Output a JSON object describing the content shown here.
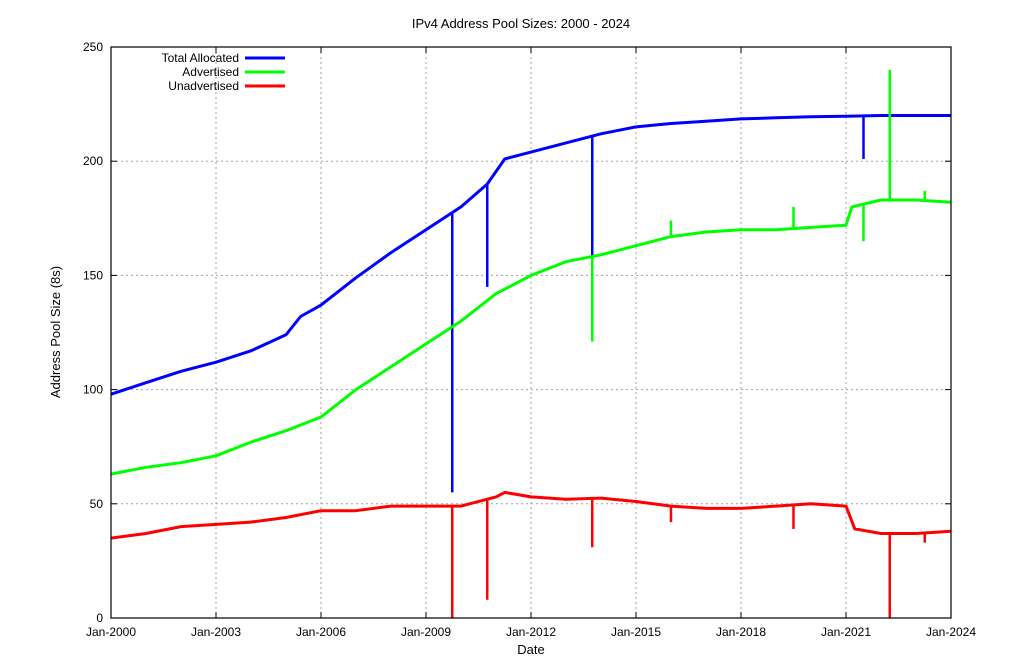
{
  "chart_data": {
    "type": "line",
    "title": "IPv4 Address Pool Sizes: 2000 - 2024",
    "xlabel": "Date",
    "ylabel": "Address Pool Size (8s)",
    "xlim": [
      "2000-01",
      "2024-01"
    ],
    "ylim": [
      0,
      250
    ],
    "grid": true,
    "legend_position": "top-left",
    "x_ticks": [
      "Jan-2000",
      "Jan-2003",
      "Jan-2006",
      "Jan-2009",
      "Jan-2012",
      "Jan-2015",
      "Jan-2018",
      "Jan-2021",
      "Jan-2024"
    ],
    "y_ticks": [
      0,
      50,
      100,
      150,
      200,
      250
    ],
    "series": [
      {
        "name": "Total Allocated",
        "color": "#0000ff",
        "points": [
          [
            "2000-01",
            98
          ],
          [
            "2001-01",
            103
          ],
          [
            "2002-01",
            108
          ],
          [
            "2003-01",
            112
          ],
          [
            "2004-01",
            117
          ],
          [
            "2005-01",
            124
          ],
          [
            "2005-06",
            132
          ],
          [
            "2006-01",
            137
          ],
          [
            "2007-01",
            149
          ],
          [
            "2008-01",
            160
          ],
          [
            "2009-01",
            170
          ],
          [
            "2010-01",
            180
          ],
          [
            "2010-10",
            190
          ],
          [
            "2011-04",
            201
          ],
          [
            "2012-01",
            204
          ],
          [
            "2013-01",
            208
          ],
          [
            "2014-01",
            212
          ],
          [
            "2015-01",
            215
          ],
          [
            "2016-01",
            216.5
          ],
          [
            "2017-01",
            217.5
          ],
          [
            "2018-01",
            218.5
          ],
          [
            "2019-01",
            219
          ],
          [
            "2020-01",
            219.5
          ],
          [
            "2021-01",
            219.7
          ],
          [
            "2022-01",
            220
          ],
          [
            "2023-01",
            220
          ],
          [
            "2024-01",
            220
          ]
        ],
        "spikes": [
          [
            "2009-10",
            55
          ],
          [
            "2010-10",
            145
          ],
          [
            "2013-10",
            130
          ],
          [
            "2021-07",
            201
          ]
        ]
      },
      {
        "name": "Advertised",
        "color": "#00ff00",
        "points": [
          [
            "2000-01",
            63
          ],
          [
            "2001-01",
            66
          ],
          [
            "2002-01",
            68
          ],
          [
            "2003-01",
            71
          ],
          [
            "2004-01",
            77
          ],
          [
            "2005-01",
            82
          ],
          [
            "2006-01",
            88
          ],
          [
            "2007-01",
            100
          ],
          [
            "2008-01",
            110
          ],
          [
            "2009-01",
            120
          ],
          [
            "2010-01",
            130
          ],
          [
            "2011-01",
            142
          ],
          [
            "2012-01",
            150
          ],
          [
            "2013-01",
            156
          ],
          [
            "2014-01",
            159
          ],
          [
            "2015-01",
            163
          ],
          [
            "2016-01",
            167
          ],
          [
            "2017-01",
            169
          ],
          [
            "2018-01",
            170
          ],
          [
            "2019-01",
            170
          ],
          [
            "2020-01",
            171
          ],
          [
            "2021-01",
            172
          ],
          [
            "2021-03",
            180
          ],
          [
            "2022-01",
            183
          ],
          [
            "2023-01",
            183
          ],
          [
            "2024-01",
            182
          ]
        ],
        "spikes": [
          [
            "2013-10",
            121
          ],
          [
            "2016-01",
            174
          ],
          [
            "2019-07",
            180
          ],
          [
            "2021-07",
            165
          ],
          [
            "2022-04",
            240
          ],
          [
            "2023-04",
            187
          ]
        ]
      },
      {
        "name": "Unadvertised",
        "color": "#ff0000",
        "points": [
          [
            "2000-01",
            35
          ],
          [
            "2001-01",
            37
          ],
          [
            "2002-01",
            40
          ],
          [
            "2003-01",
            41
          ],
          [
            "2004-01",
            42
          ],
          [
            "2005-01",
            44
          ],
          [
            "2006-01",
            47
          ],
          [
            "2007-01",
            47
          ],
          [
            "2008-01",
            49
          ],
          [
            "2009-01",
            49
          ],
          [
            "2010-01",
            49
          ],
          [
            "2011-01",
            53
          ],
          [
            "2011-04",
            55
          ],
          [
            "2012-01",
            53
          ],
          [
            "2013-01",
            52
          ],
          [
            "2014-01",
            52.5
          ],
          [
            "2015-01",
            51
          ],
          [
            "2016-01",
            49
          ],
          [
            "2017-01",
            48
          ],
          [
            "2018-01",
            48
          ],
          [
            "2019-01",
            49
          ],
          [
            "2020-01",
            50
          ],
          [
            "2021-01",
            49
          ],
          [
            "2021-04",
            39
          ],
          [
            "2022-01",
            37
          ],
          [
            "2023-01",
            37
          ],
          [
            "2024-01",
            38
          ]
        ],
        "spikes": [
          [
            "2009-10",
            0
          ],
          [
            "2010-10",
            8
          ],
          [
            "2013-10",
            31
          ],
          [
            "2016-01",
            42
          ],
          [
            "2019-07",
            39
          ],
          [
            "2022-04",
            0
          ],
          [
            "2023-04",
            33
          ]
        ]
      }
    ]
  }
}
